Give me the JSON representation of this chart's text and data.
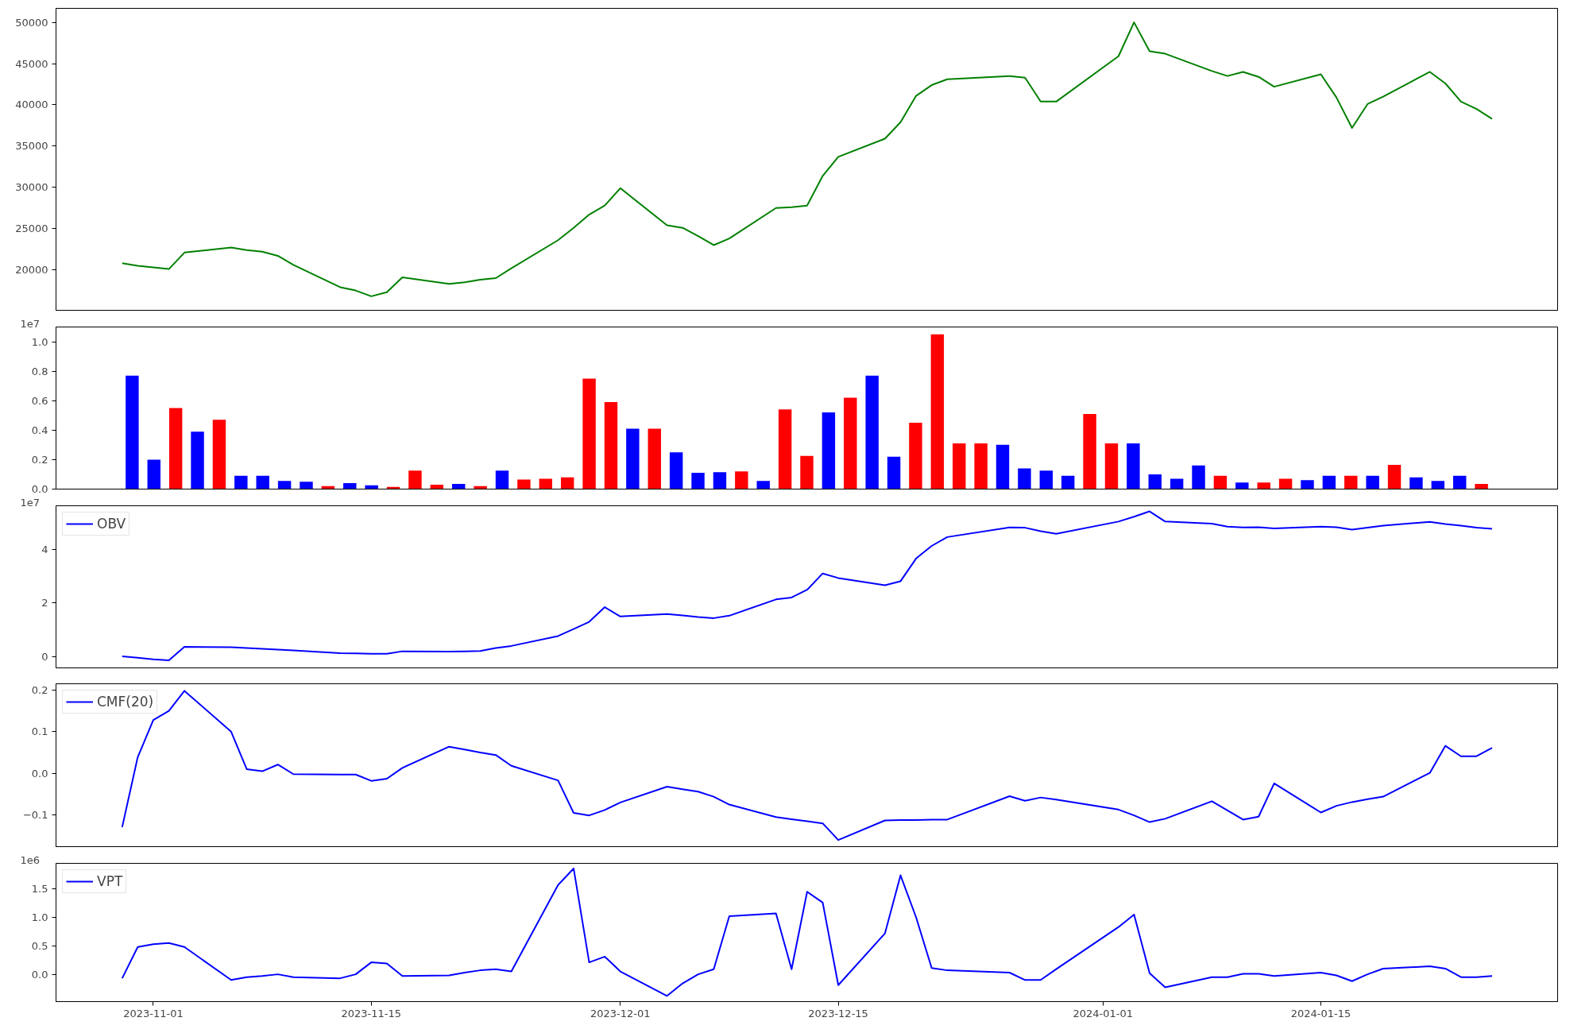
{
  "chart_data": [
    {
      "type": "line",
      "color": "#008000",
      "x": [
        "2023-10-30",
        "2023-10-31",
        "2023-11-01",
        "2023-11-02",
        "2023-11-03",
        "2023-11-06",
        "2023-11-07",
        "2023-11-08",
        "2023-11-09",
        "2023-11-10",
        "2023-11-13",
        "2023-11-14",
        "2023-11-15",
        "2023-11-16",
        "2023-11-17",
        "2023-11-20",
        "2023-11-21",
        "2023-11-22",
        "2023-11-23",
        "2023-11-24",
        "2023-11-27",
        "2023-11-28",
        "2023-11-29",
        "2023-11-30",
        "2023-12-01",
        "2023-12-04",
        "2023-12-05",
        "2023-12-06",
        "2023-12-07",
        "2023-12-08",
        "2023-12-11",
        "2023-12-12",
        "2023-12-13",
        "2023-12-14",
        "2023-12-15",
        "2023-12-18",
        "2023-12-19",
        "2023-12-20",
        "2023-12-21",
        "2023-12-22",
        "2023-12-26",
        "2023-12-27",
        "2023-12-28",
        "2023-12-29",
        "2024-01-02",
        "2024-01-03",
        "2024-01-04",
        "2024-01-05",
        "2024-01-08",
        "2024-01-09",
        "2024-01-10",
        "2024-01-11",
        "2024-01-12",
        "2024-01-15",
        "2024-01-16",
        "2024-01-17",
        "2024-01-18",
        "2024-01-19",
        "2024-01-22",
        "2024-01-23",
        "2024-01-24",
        "2024-01-25",
        "2024-01-26"
      ],
      "values": [
        20800,
        20500,
        20300,
        20100,
        22100,
        22700,
        22400,
        22200,
        21700,
        20600,
        17900,
        17500,
        16800,
        17300,
        19100,
        18300,
        18500,
        18800,
        19000,
        20200,
        23600,
        25100,
        26700,
        27800,
        29900,
        25400,
        25100,
        24100,
        23000,
        23800,
        27500,
        27600,
        27800,
        31400,
        33700,
        35900,
        37900,
        41100,
        42400,
        43100,
        43500,
        43300,
        40400,
        40400,
        45900,
        50000,
        46500,
        46200,
        44100,
        43500,
        44000,
        43400,
        42200,
        43700,
        40900,
        37200,
        40100,
        41000,
        44000,
        42600,
        40400,
        39500,
        38300
      ],
      "xlim": [
        "2023-10-25T18:00",
        "2024-01-30T05:00"
      ],
      "xticks": [
        "2023-11-01",
        "2023-11-15",
        "2023-12-01",
        "2023-12-15",
        "2024-01-01",
        "2024-01-15"
      ],
      "ylim": [
        15100,
        51700
      ],
      "yticks": [
        20000,
        25000,
        30000,
        35000,
        40000,
        45000,
        50000
      ],
      "tick_labels": "y",
      "grid": false
    },
    {
      "type": "bar",
      "categories": [
        null,
        null,
        null,
        null,
        null,
        null,
        null,
        null,
        null,
        null,
        null,
        null,
        null,
        null,
        null,
        null,
        null,
        null,
        null,
        null,
        null,
        null,
        null,
        null,
        null,
        null,
        null,
        null,
        null,
        null,
        null,
        null,
        null,
        null,
        null,
        null,
        null,
        null,
        null,
        null,
        null,
        null,
        null,
        null,
        null,
        null,
        null,
        null,
        null,
        null,
        null,
        null,
        null,
        null,
        null,
        null,
        null,
        null,
        null,
        null,
        null,
        null,
        null,
        null,
        null,
        null,
        null,
        null,
        null
      ],
      "values": [
        null,
        null,
        null,
        0.77,
        0.2,
        0.55,
        0.39,
        0.47,
        0.09,
        0.09,
        0.055,
        0.05,
        0.02,
        0.04,
        0.025,
        0.015,
        0.125,
        0.03,
        0.035,
        0.02,
        0.125,
        0.065,
        0.07,
        0.08,
        0.75,
        0.59,
        0.41,
        0.41,
        0.25,
        0.11,
        0.115,
        0.12,
        0.055,
        0.54,
        0.225,
        0.52,
        0.62,
        0.77,
        0.22,
        0.45,
        1.05,
        0.31,
        0.31,
        0.3,
        0.14,
        0.125,
        0.09,
        0.51,
        0.31,
        0.31,
        0.1,
        0.07,
        0.16,
        0.09,
        0.045,
        0.045,
        0.07,
        0.06,
        0.09,
        0.09,
        0.09,
        0.165,
        0.08,
        0.055,
        0.09,
        0.035,
        null,
        null,
        null
      ],
      "colors": [
        null,
        null,
        null,
        "#0000ff",
        "#0000ff",
        "#ff0000",
        "#0000ff",
        "#ff0000",
        "#0000ff",
        "#0000ff",
        "#0000ff",
        "#0000ff",
        "#ff0000",
        "#0000ff",
        "#0000ff",
        "#ff0000",
        "#ff0000",
        "#ff0000",
        "#0000ff",
        "#ff0000",
        "#0000ff",
        "#ff0000",
        "#ff0000",
        "#ff0000",
        "#ff0000",
        "#ff0000",
        "#0000ff",
        "#ff0000",
        "#0000ff",
        "#0000ff",
        "#0000ff",
        "#ff0000",
        "#0000ff",
        "#ff0000",
        "#ff0000",
        "#0000ff",
        "#ff0000",
        "#0000ff",
        "#0000ff",
        "#ff0000",
        "#ff0000",
        "#ff0000",
        "#ff0000",
        "#0000ff",
        "#0000ff",
        "#0000ff",
        "#0000ff",
        "#ff0000",
        "#ff0000",
        "#0000ff",
        "#0000ff",
        "#0000ff",
        "#0000ff",
        "#ff0000",
        "#0000ff",
        "#ff0000",
        "#ff0000",
        "#0000ff",
        "#0000ff",
        "#ff0000",
        "#0000ff",
        "#ff0000",
        "#0000ff",
        "#0000ff",
        "#0000ff",
        "#ff0000",
        null,
        null,
        null
      ],
      "ylim": [
        0,
        1.1
      ],
      "yticks": [
        {
          "value": 0,
          "label": "0.0"
        },
        0.2,
        0.4,
        0.6,
        0.8,
        {
          "value": 1,
          "label": "1.0"
        }
      ],
      "annotations": [
        "1e7"
      ],
      "tick_labels": "y",
      "grid": false
    },
    {
      "type": "line",
      "x": [
        "2023-10-30",
        "2023-10-31",
        "2023-11-01",
        "2023-11-02",
        "2023-11-03",
        "2023-11-06",
        "2023-11-07",
        "2023-11-08",
        "2023-11-09",
        "2023-11-10",
        "2023-11-13",
        "2023-11-14",
        "2023-11-15",
        "2023-11-16",
        "2023-11-17",
        "2023-11-20",
        "2023-11-21",
        "2023-11-22",
        "2023-11-23",
        "2023-11-24",
        "2023-11-27",
        "2023-11-28",
        "2023-11-29",
        "2023-11-30",
        "2023-12-01",
        "2023-12-04",
        "2023-12-05",
        "2023-12-06",
        "2023-12-07",
        "2023-12-08",
        "2023-12-11",
        "2023-12-12",
        "2023-12-13",
        "2023-12-14",
        "2023-12-15",
        "2023-12-18",
        "2023-12-19",
        "2023-12-20",
        "2023-12-21",
        "2023-12-22",
        "2023-12-26",
        "2023-12-27",
        "2023-12-28",
        "2023-12-29",
        "2024-01-02",
        "2024-01-03",
        "2024-01-04",
        "2024-01-05",
        "2024-01-08",
        "2024-01-09",
        "2024-01-10",
        "2024-01-11",
        "2024-01-12",
        "2024-01-15",
        "2024-01-16",
        "2024-01-17",
        "2024-01-18",
        "2024-01-19",
        "2024-01-22",
        "2024-01-23",
        "2024-01-24",
        "2024-01-25",
        "2024-01-26"
      ],
      "series": [
        {
          "name": "OBV",
          "color": "#0000ff",
          "values": [
            0,
            -0.05,
            -0.11,
            -0.15,
            0.36,
            0.34,
            0.31,
            0.28,
            0.25,
            0.22,
            0.12,
            0.11,
            0.1,
            0.1,
            0.19,
            0.18,
            0.19,
            0.2,
            0.31,
            0.39,
            0.76,
            1.02,
            1.29,
            1.84,
            1.49,
            1.58,
            1.53,
            1.47,
            1.43,
            1.52,
            2.13,
            2.2,
            2.49,
            3.1,
            2.93,
            2.66,
            2.81,
            3.66,
            4.13,
            4.46,
            4.82,
            4.81,
            4.68,
            4.58,
            5.04,
            5.22,
            5.42,
            5.04,
            4.96,
            4.85,
            4.82,
            4.83,
            4.78,
            4.85,
            4.83,
            4.74,
            4.81,
            4.89,
            5.03,
            4.95,
            4.89,
            4.81,
            4.77
          ]
        }
      ],
      "xlim": [
        "2023-10-25T18:00",
        "2024-01-30T05:00"
      ],
      "xticks": [
        "2023-11-01",
        "2023-11-15",
        "2023-12-01",
        "2023-12-15",
        "2024-01-01",
        "2024-01-15"
      ],
      "ylim": [
        -0.43,
        5.63
      ],
      "yticks": [
        0,
        2,
        4
      ],
      "annotations": [
        "1e7"
      ],
      "legend": "top left",
      "tick_labels": "y",
      "grid": false
    },
    {
      "type": "line",
      "x": [
        "2023-10-30",
        "2023-10-31",
        "2023-11-01",
        "2023-11-02",
        "2023-11-03",
        "2023-11-06",
        "2023-11-07",
        "2023-11-08",
        "2023-11-09",
        "2023-11-10",
        "2023-11-13",
        "2023-11-14",
        "2023-11-15",
        "2023-11-16",
        "2023-11-17",
        "2023-11-20",
        "2023-11-21",
        "2023-11-22",
        "2023-11-23",
        "2023-11-24",
        "2023-11-27",
        "2023-11-28",
        "2023-11-29",
        "2023-11-30",
        "2023-12-01",
        "2023-12-04",
        "2023-12-05",
        "2023-12-06",
        "2023-12-07",
        "2023-12-08",
        "2023-12-11",
        "2023-12-12",
        "2023-12-13",
        "2023-12-14",
        "2023-12-15",
        "2023-12-18",
        "2023-12-19",
        "2023-12-20",
        "2023-12-21",
        "2023-12-22",
        "2023-12-26",
        "2023-12-27",
        "2023-12-28",
        "2023-12-29",
        "2024-01-02",
        "2024-01-03",
        "2024-01-04",
        "2024-01-05",
        "2024-01-08",
        "2024-01-09",
        "2024-01-10",
        "2024-01-11",
        "2024-01-12",
        "2024-01-15",
        "2024-01-16",
        "2024-01-17",
        "2024-01-18",
        "2024-01-19",
        "2024-01-22",
        "2024-01-23",
        "2024-01-24",
        "2024-01-25",
        "2024-01-26"
      ],
      "series": [
        {
          "name": "CMF(20)",
          "color": "#0000ff",
          "values": [
            -0.129,
            0.039,
            0.128,
            0.15,
            0.198,
            0.1,
            0.01,
            0.005,
            0.021,
            -0.002,
            -0.003,
            -0.003,
            -0.018,
            -0.013,
            0.013,
            0.064,
            0.057,
            0.05,
            0.044,
            0.018,
            -0.017,
            -0.095,
            -0.101,
            -0.088,
            -0.07,
            -0.032,
            -0.038,
            -0.044,
            -0.056,
            -0.075,
            -0.105,
            -0.11,
            -0.115,
            -0.12,
            -0.16,
            -0.113,
            -0.112,
            -0.112,
            -0.111,
            -0.111,
            -0.055,
            -0.066,
            -0.058,
            -0.063,
            -0.087,
            -0.101,
            -0.117,
            -0.109,
            -0.067,
            -0.089,
            -0.111,
            -0.104,
            -0.024,
            -0.094,
            -0.078,
            -0.069,
            -0.062,
            -0.056,
            0.001,
            0.066,
            0.041,
            0.041,
            0.061
          ]
        }
      ],
      "xlim": [
        "2023-10-25T18:00",
        "2024-01-30T05:00"
      ],
      "xticks": [
        "2023-11-01",
        "2023-11-15",
        "2023-12-01",
        "2023-12-15",
        "2024-01-01",
        "2024-01-15"
      ],
      "ylim": [
        -0.176,
        0.215
      ],
      "yticks": [
        {
          "value": -0.1,
          "label": "−0.1"
        },
        {
          "value": 0,
          "label": "0.0"
        },
        0.1,
        0.2
      ],
      "legend": "top left",
      "tick_labels": "y",
      "grid": false
    },
    {
      "type": "line",
      "x": [
        "2023-10-30",
        "2023-10-31",
        "2023-11-01",
        "2023-11-02",
        "2023-11-03",
        "2023-11-06",
        "2023-11-07",
        "2023-11-08",
        "2023-11-09",
        "2023-11-10",
        "2023-11-13",
        "2023-11-14",
        "2023-11-15",
        "2023-11-16",
        "2023-11-17",
        "2023-11-20",
        "2023-11-21",
        "2023-11-22",
        "2023-11-23",
        "2023-11-24",
        "2023-11-27",
        "2023-11-28",
        "2023-11-29",
        "2023-11-30",
        "2023-12-01",
        "2023-12-04",
        "2023-12-05",
        "2023-12-06",
        "2023-12-07",
        "2023-12-08",
        "2023-12-11",
        "2023-12-12",
        "2023-12-13",
        "2023-12-14",
        "2023-12-15",
        "2023-12-18",
        "2023-12-19",
        "2023-12-20",
        "2023-12-21",
        "2023-12-22",
        "2023-12-26",
        "2023-12-27",
        "2023-12-28",
        "2023-12-29",
        "2024-01-02",
        "2024-01-03",
        "2024-01-04",
        "2024-01-05",
        "2024-01-08",
        "2024-01-09",
        "2024-01-10",
        "2024-01-11",
        "2024-01-12",
        "2024-01-15",
        "2024-01-16",
        "2024-01-17",
        "2024-01-18",
        "2024-01-19",
        "2024-01-22",
        "2024-01-23",
        "2024-01-24",
        "2024-01-25",
        "2024-01-26"
      ],
      "series": [
        {
          "name": "VPT",
          "color": "#0000ff",
          "values": [
            -0.07,
            0.48,
            0.53,
            0.55,
            0.48,
            -0.1,
            -0.05,
            -0.03,
            0,
            -0.05,
            -0.07,
            0,
            0.21,
            0.19,
            -0.03,
            -0.02,
            0.03,
            0.07,
            0.09,
            0.05,
            1.57,
            1.86,
            0.21,
            0.31,
            0.05,
            -0.38,
            -0.16,
            0,
            0.09,
            1.02,
            1.07,
            0.09,
            1.45,
            1.26,
            -0.19,
            0.72,
            1.74,
            1.0,
            0.11,
            0.07,
            0.03,
            -0.1,
            -0.1,
            0.09,
            0.83,
            1.05,
            0.02,
            -0.23,
            -0.05,
            -0.05,
            0.01,
            0.01,
            -0.03,
            0.03,
            -0.02,
            -0.12,
            0,
            0.1,
            0.14,
            0.1,
            -0.05,
            -0.05,
            -0.03
          ]
        }
      ],
      "xlim": [
        "2023-10-25T18:00",
        "2024-01-30T05:00"
      ],
      "xticks": [
        "2023-11-01",
        "2023-11-15",
        "2023-12-01",
        "2023-12-15",
        "2024-01-01",
        "2024-01-15"
      ],
      "ylim": [
        -0.48,
        1.95
      ],
      "yticks": [
        {
          "value": 0,
          "label": "0.0"
        },
        0.5,
        {
          "value": 1,
          "label": "1.0"
        },
        1.5
      ],
      "annotations": [
        "1e6"
      ],
      "legend": "top left",
      "grid": false
    }
  ]
}
